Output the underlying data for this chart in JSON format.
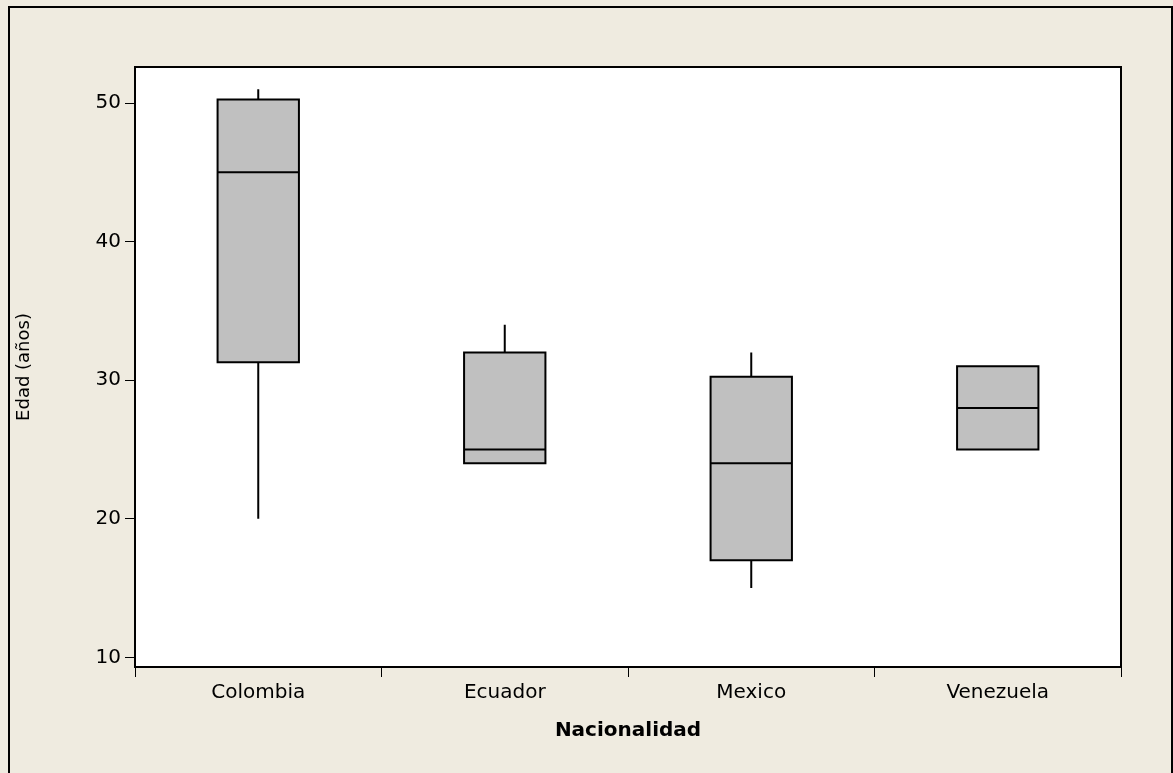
{
  "chart_data": {
    "type": "box",
    "xlabel": "Nacionalidad",
    "ylabel": "Edad (años)",
    "categories": [
      "Colombia",
      "Ecuador",
      "Mexico",
      "Venezuela"
    ],
    "color": "#c0c0c0",
    "boxes": [
      {
        "low": 20,
        "q1": 31.3,
        "median": 45,
        "q3": 50.25,
        "high": 51
      },
      {
        "low": 24,
        "q1": 24,
        "median": 25,
        "q3": 32,
        "high": 34
      },
      {
        "low": 15,
        "q1": 17,
        "median": 24,
        "q3": 30.25,
        "high": 32
      },
      {
        "low": 25,
        "q1": 25,
        "median": 28,
        "q3": 31,
        "high": 31
      }
    ],
    "ylim": [
      9.3,
      52.6
    ],
    "yticks": [
      10,
      20,
      30,
      40,
      50
    ]
  }
}
